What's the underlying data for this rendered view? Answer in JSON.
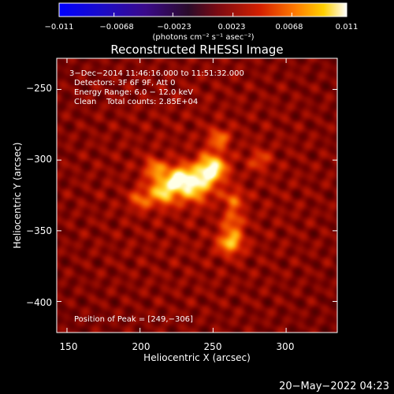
{
  "chart_data": {
    "type": "heatmap",
    "title": "Reconstructed RHESSI Image",
    "xlabel": "Heliocentric X (arcsec)",
    "ylabel": "Heliocentric Y (arcsec)",
    "xlim": [
      143,
      335
    ],
    "ylim": [
      -422,
      -228
    ],
    "x_ticks": [
      150,
      200,
      250,
      300
    ],
    "y_ticks": [
      -250,
      -300,
      -350,
      -400
    ],
    "x_tick_labels": [
      "150",
      "200",
      "250",
      "300"
    ],
    "y_tick_labels": [
      "−250",
      "−300",
      "−350",
      "−400"
    ],
    "colorbar": {
      "range": [
        -0.011,
        0.011
      ],
      "ticks": [
        -0.011,
        -0.0068,
        -0.0023,
        0.0023,
        0.0068,
        0.011
      ],
      "tick_labels": [
        "−0.011",
        "−0.0068",
        "−0.0023",
        "0.0023",
        "0.0068",
        "0.011"
      ],
      "unit_label": "(photons cm⁻² s⁻¹ asec⁻²)",
      "colormap": "gnuplot heat (blue-purple-red-yellow-white)"
    },
    "annotations": [
      "3−Dec−2014 11:46:16.000 to 11:51:32.000",
      "Detectors: 3F 6F 9F, Att 0",
      "Energy Range: 6.0 − 12.0 keV",
      "Clean    Total counts: 2.85E+04"
    ],
    "peak_text": "Position of Peak = [249,−306]",
    "peak": [
      249,
      -306
    ],
    "sources": [
      {
        "x": 249,
        "y": -306,
        "sigma": 7,
        "amp": 1.0
      },
      {
        "x": 237,
        "y": -318,
        "sigma": 8,
        "amp": 0.85
      },
      {
        "x": 216,
        "y": -322,
        "sigma": 7,
        "amp": 0.8
      },
      {
        "x": 226,
        "y": -312,
        "sigma": 6,
        "amp": 0.7
      },
      {
        "x": 210,
        "y": -306,
        "sigma": 5,
        "amp": 0.55
      },
      {
        "x": 254,
        "y": -285,
        "sigma": 5,
        "amp": 0.5
      },
      {
        "x": 264,
        "y": -328,
        "sigma": 5,
        "amp": 0.45
      },
      {
        "x": 262,
        "y": -358,
        "sigma": 6,
        "amp": 0.75
      },
      {
        "x": 264,
        "y": -343,
        "sigma": 5,
        "amp": 0.45
      },
      {
        "x": 200,
        "y": -328,
        "sigma": 5,
        "amp": 0.45
      },
      {
        "x": 282,
        "y": -300,
        "sigma": 5,
        "amp": 0.35
      }
    ]
  },
  "footer": {
    "timestamp": "20−May−2022 04:23"
  }
}
